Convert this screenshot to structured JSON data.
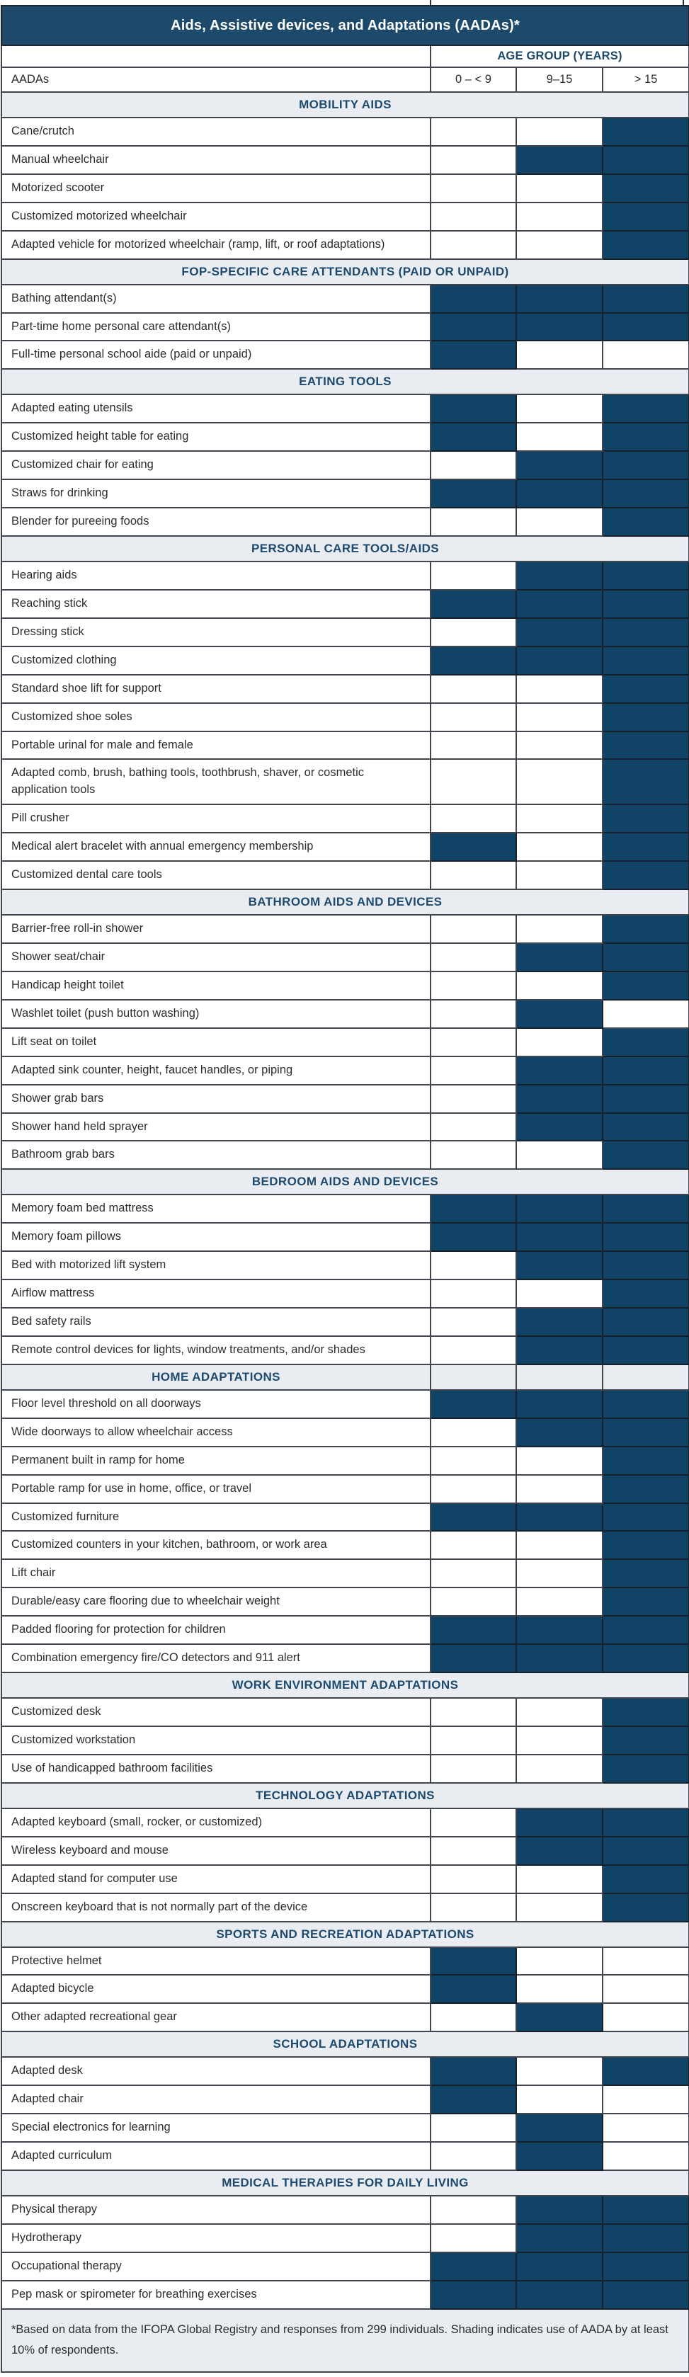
{
  "title": "Aids, Assistive devices, and Adaptations (AADAs)*",
  "columns_header": {
    "group_label": "AGE GROUP (YEARS)",
    "row_label": "AADAs",
    "age_columns": [
      "0 – < 9",
      "9–15",
      "> 15"
    ]
  },
  "footnote": "*Based on data from the IFOPA Global Registry and responses from 299 individuals. Shading indicates use of AADA by at least 10% of respondents.",
  "colors": {
    "title_bar": "#1d4a6b",
    "shaded_cell": "#104366",
    "section_header_bg": "#e9edf2",
    "section_header_text": "#1d4a6e"
  },
  "shading_meaning": "shaded = used by at least 10% of respondents in that age group",
  "sections": [
    {
      "header": "MOBILITY AIDS",
      "rows": [
        {
          "label": "Cane/crutch",
          "shaded": [
            0,
            0,
            1
          ]
        },
        {
          "label": "Manual wheelchair",
          "shaded": [
            0,
            1,
            1
          ]
        },
        {
          "label": "Motorized scooter",
          "shaded": [
            0,
            0,
            1
          ]
        },
        {
          "label": "Customized motorized wheelchair",
          "shaded": [
            0,
            0,
            1
          ]
        },
        {
          "label": "Adapted vehicle for motorized wheelchair (ramp, lift, or roof adaptations)",
          "shaded": [
            0,
            0,
            1
          ]
        }
      ]
    },
    {
      "header": "FOP-SPECIFIC CARE ATTENDANTS (PAID OR UNPAID)",
      "rows": [
        {
          "label": "Bathing attendant(s)",
          "shaded": [
            1,
            1,
            1
          ]
        },
        {
          "label": "Part-time home personal care attendant(s)",
          "shaded": [
            1,
            1,
            1
          ]
        },
        {
          "label": "Full-time personal school aide (paid or unpaid)",
          "shaded": [
            1,
            0,
            0
          ]
        }
      ]
    },
    {
      "header": "EATING TOOLS",
      "rows": [
        {
          "label": "Adapted eating utensils",
          "shaded": [
            1,
            0,
            1
          ]
        },
        {
          "label": "Customized height table for eating",
          "shaded": [
            1,
            0,
            1
          ]
        },
        {
          "label": "Customized chair for eating",
          "shaded": [
            0,
            1,
            1
          ]
        },
        {
          "label": "Straws for drinking",
          "shaded": [
            1,
            1,
            1
          ]
        },
        {
          "label": "Blender for pureeing foods",
          "shaded": [
            0,
            0,
            1
          ]
        }
      ]
    },
    {
      "header": "PERSONAL CARE TOOLS/AIDS",
      "rows": [
        {
          "label": "Hearing aids",
          "shaded": [
            0,
            1,
            1
          ]
        },
        {
          "label": "Reaching stick",
          "shaded": [
            1,
            1,
            1
          ]
        },
        {
          "label": "Dressing stick",
          "shaded": [
            0,
            1,
            1
          ]
        },
        {
          "label": "Customized clothing",
          "shaded": [
            1,
            1,
            1
          ]
        },
        {
          "label": "Standard shoe lift for support",
          "shaded": [
            0,
            0,
            1
          ]
        },
        {
          "label": "Customized shoe soles",
          "shaded": [
            0,
            0,
            1
          ]
        },
        {
          "label": "Portable urinal for male and female",
          "shaded": [
            0,
            0,
            1
          ]
        },
        {
          "label": "Adapted comb, brush, bathing tools, toothbrush, shaver, or cosmetic application tools",
          "shaded": [
            0,
            0,
            1
          ]
        },
        {
          "label": "Pill crusher",
          "shaded": [
            0,
            0,
            1
          ]
        },
        {
          "label": "Medical alert bracelet with annual emergency membership",
          "shaded": [
            1,
            0,
            1
          ]
        },
        {
          "label": "Customized dental care tools",
          "shaded": [
            0,
            0,
            1
          ]
        }
      ]
    },
    {
      "header": "BATHROOM AIDS AND DEVICES",
      "rows": [
        {
          "label": "Barrier-free roll-in shower",
          "shaded": [
            0,
            0,
            1
          ]
        },
        {
          "label": "Shower seat/chair",
          "shaded": [
            0,
            1,
            1
          ]
        },
        {
          "label": "Handicap height toilet",
          "shaded": [
            0,
            0,
            1
          ]
        },
        {
          "label": "Washlet toilet (push button washing)",
          "shaded": [
            0,
            1,
            0
          ]
        },
        {
          "label": "Lift seat on toilet",
          "shaded": [
            0,
            0,
            1
          ]
        },
        {
          "label": "Adapted sink counter, height, faucet handles, or piping",
          "shaded": [
            0,
            1,
            1
          ]
        },
        {
          "label": "Shower grab bars",
          "shaded": [
            0,
            1,
            1
          ]
        },
        {
          "label": "Shower hand held sprayer",
          "shaded": [
            0,
            1,
            1
          ]
        },
        {
          "label": "Bathroom grab bars",
          "shaded": [
            0,
            0,
            1
          ]
        }
      ]
    },
    {
      "header": "BEDROOM AIDS AND DEVICES",
      "rows": [
        {
          "label": "Memory foam bed mattress",
          "shaded": [
            1,
            1,
            1
          ]
        },
        {
          "label": "Memory foam pillows",
          "shaded": [
            1,
            1,
            1
          ]
        },
        {
          "label": "Bed with motorized lift system",
          "shaded": [
            0,
            1,
            1
          ]
        },
        {
          "label": "Airflow mattress",
          "shaded": [
            0,
            0,
            1
          ]
        },
        {
          "label": "Bed safety rails",
          "shaded": [
            0,
            1,
            1
          ]
        },
        {
          "label": "Remote control devices for lights, window treatments, and/or shades",
          "shaded": [
            0,
            1,
            1
          ]
        }
      ]
    },
    {
      "header": "HOME ADAPTATIONS",
      "split_header": true,
      "rows": [
        {
          "label": "Floor level threshold on all doorways",
          "shaded": [
            1,
            1,
            1
          ]
        },
        {
          "label": "Wide doorways to allow wheelchair access",
          "shaded": [
            0,
            1,
            1
          ]
        },
        {
          "label": "Permanent built in ramp for home",
          "shaded": [
            0,
            0,
            1
          ]
        },
        {
          "label": "Portable ramp for use in home, office, or travel",
          "shaded": [
            0,
            0,
            1
          ]
        },
        {
          "label": "Customized furniture",
          "shaded": [
            1,
            1,
            1
          ]
        },
        {
          "label": "Customized counters in your kitchen, bathroom, or work area",
          "shaded": [
            0,
            0,
            1
          ]
        },
        {
          "label": "Lift chair",
          "shaded": [
            0,
            0,
            1
          ]
        },
        {
          "label": "Durable/easy care flooring due to wheelchair weight",
          "shaded": [
            0,
            0,
            1
          ]
        },
        {
          "label": "Padded flooring for protection for children",
          "shaded": [
            1,
            1,
            1
          ]
        },
        {
          "label": "Combination emergency fire/CO detectors and 911 alert",
          "shaded": [
            1,
            1,
            1
          ]
        }
      ]
    },
    {
      "header": "WORK ENVIRONMENT ADAPTATIONS",
      "rows": [
        {
          "label": "Customized desk",
          "shaded": [
            0,
            0,
            1
          ]
        },
        {
          "label": "Customized workstation",
          "shaded": [
            0,
            0,
            1
          ]
        },
        {
          "label": "Use of handicapped bathroom facilities",
          "shaded": [
            0,
            0,
            1
          ]
        }
      ]
    },
    {
      "header": "TECHNOLOGY ADAPTATIONS",
      "rows": [
        {
          "label": "Adapted keyboard (small, rocker, or customized)",
          "shaded": [
            0,
            1,
            1
          ]
        },
        {
          "label": "Wireless keyboard and mouse",
          "shaded": [
            0,
            1,
            1
          ]
        },
        {
          "label": "Adapted stand for computer use",
          "shaded": [
            0,
            0,
            1
          ]
        },
        {
          "label": "Onscreen keyboard that is not normally part of the device",
          "shaded": [
            0,
            0,
            1
          ]
        }
      ]
    },
    {
      "header": "SPORTS AND RECREATION ADAPTATIONS",
      "rows": [
        {
          "label": "Protective helmet",
          "shaded": [
            1,
            0,
            0
          ]
        },
        {
          "label": "Adapted bicycle",
          "shaded": [
            1,
            0,
            0
          ]
        },
        {
          "label": "Other adapted recreational gear",
          "shaded": [
            0,
            1,
            0
          ]
        }
      ]
    },
    {
      "header": "SCHOOL ADAPTATIONS",
      "rows": [
        {
          "label": "Adapted desk",
          "shaded": [
            1,
            0,
            1
          ]
        },
        {
          "label": "Adapted chair",
          "shaded": [
            1,
            0,
            0
          ]
        },
        {
          "label": "Special electronics for learning",
          "shaded": [
            0,
            1,
            0
          ]
        },
        {
          "label": "Adapted curriculum",
          "shaded": [
            0,
            1,
            0
          ]
        }
      ]
    },
    {
      "header": "MEDICAL THERAPIES FOR DAILY LIVING",
      "rows": [
        {
          "label": "Physical therapy",
          "shaded": [
            0,
            1,
            1
          ]
        },
        {
          "label": "Hydrotherapy",
          "shaded": [
            0,
            1,
            1
          ]
        },
        {
          "label": "Occupational therapy",
          "shaded": [
            1,
            1,
            1
          ]
        },
        {
          "label": "Pep mask or spirometer for breathing exercises",
          "shaded": [
            1,
            1,
            1
          ]
        }
      ]
    }
  ]
}
